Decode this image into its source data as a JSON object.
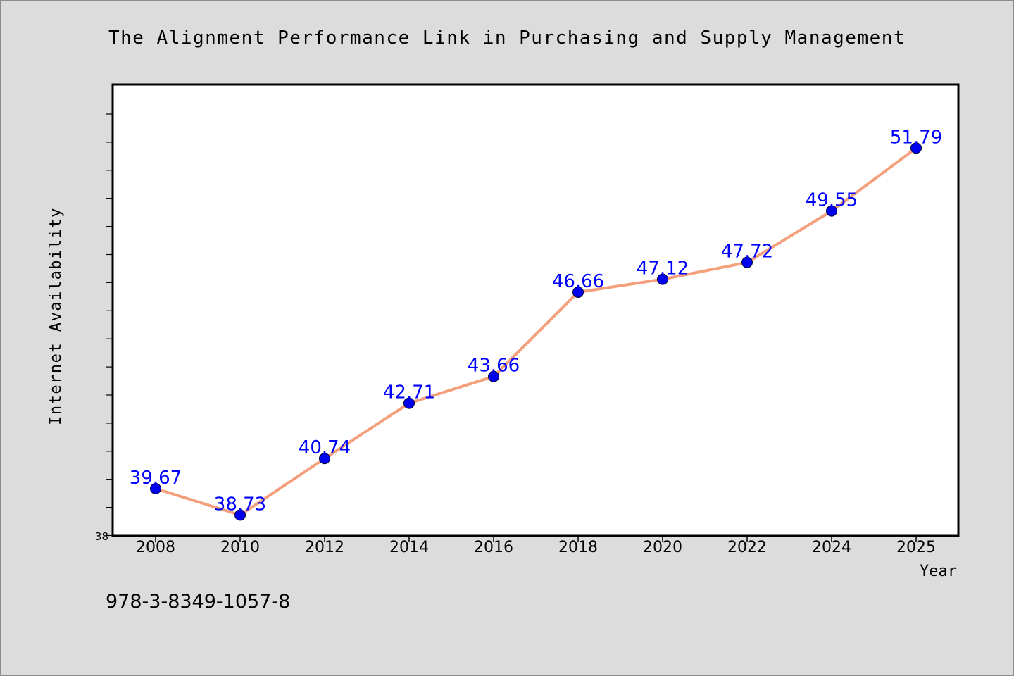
{
  "chart_data": {
    "type": "line",
    "title": "The Alignment Performance Link in Purchasing and Supply Management",
    "xlabel": "Year",
    "ylabel": "Internet Availability",
    "categories": [
      "2008",
      "2010",
      "2012",
      "2014",
      "2016",
      "2018",
      "2020",
      "2022",
      "2024",
      "2025"
    ],
    "series": [
      {
        "values": [
          39.67,
          38.73,
          40.74,
          42.71,
          43.66,
          46.66,
          47.12,
          47.72,
          49.55,
          51.79
        ],
        "data_labels": [
          "39.67",
          "38.73",
          "40.74",
          "42.71",
          "43.66",
          "46.66",
          "47.12",
          "47.72",
          "49.55",
          "51.79"
        ]
      }
    ],
    "y_tick_labels": [
      "38"
    ],
    "ylim": [
      38,
      54
    ],
    "grid": false,
    "legend": "none",
    "colors": {
      "line": "#f4a07c",
      "marker": "#0000ee",
      "data_label": "#0000ff",
      "plot_background": "#ffffff",
      "page_background": "#dcdcdc"
    }
  },
  "footer": {
    "isbn": "978-3-8349-1057-8"
  }
}
